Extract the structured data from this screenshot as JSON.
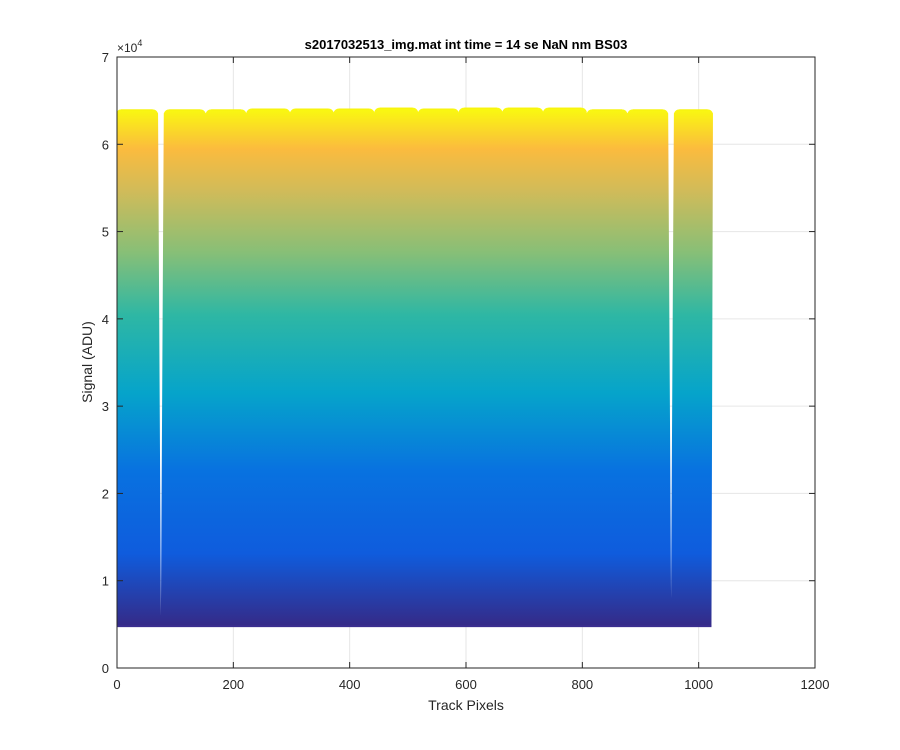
{
  "chart_data": {
    "type": "area",
    "title": "s2017032513_img.mat int time = 14 se  NaN nm BS03",
    "xlabel": "Track Pixels",
    "ylabel": "Signal (ADU)",
    "xlim": [
      0,
      1200
    ],
    "ylim": [
      0,
      70000
    ],
    "xticks": [
      "0",
      "200",
      "400",
      "600",
      "800",
      "1000",
      "1200"
    ],
    "yticks": [
      "0",
      "1",
      "2",
      "3",
      "4",
      "5",
      "6",
      "7"
    ],
    "y_exponent": {
      "base": "×10",
      "power": "4"
    },
    "grid": true,
    "colormap": [
      "#3e26a8",
      "#0072ff",
      "#0ca8c8",
      "#4cc38e",
      "#a5c15f",
      "#f9b93a",
      "#f9fb0e"
    ],
    "baseline_signal": 4800,
    "segments": [
      {
        "x_start": 0,
        "x_end": 68,
        "top": 64000,
        "gap_floor": 6000
      },
      {
        "x_start": 83,
        "x_end": 150,
        "top": 64000,
        "gap_floor": 8000
      },
      {
        "x_start": 155,
        "x_end": 220,
        "top": 64000,
        "gap_floor": 10000
      },
      {
        "x_start": 225,
        "x_end": 295,
        "top": 64100,
        "gap_floor": 10000
      },
      {
        "x_start": 300,
        "x_end": 370,
        "top": 64100,
        "gap_floor": 10000
      },
      {
        "x_start": 375,
        "x_end": 440,
        "top": 64100,
        "gap_floor": 10000
      },
      {
        "x_start": 445,
        "x_end": 515,
        "top": 64200,
        "gap_floor": 10000
      },
      {
        "x_start": 520,
        "x_end": 585,
        "top": 64100,
        "gap_floor": 10000
      },
      {
        "x_start": 590,
        "x_end": 660,
        "top": 64200,
        "gap_floor": 10000
      },
      {
        "x_start": 665,
        "x_end": 730,
        "top": 64200,
        "gap_floor": 10000
      },
      {
        "x_start": 735,
        "x_end": 805,
        "top": 64200,
        "gap_floor": 10000
      },
      {
        "x_start": 810,
        "x_end": 875,
        "top": 64000,
        "gap_floor": 10000
      },
      {
        "x_start": 880,
        "x_end": 945,
        "top": 64000,
        "gap_floor": 8000
      },
      {
        "x_start": 960,
        "x_end": 1022,
        "top": 64000,
        "gap_floor": 8000
      }
    ]
  }
}
